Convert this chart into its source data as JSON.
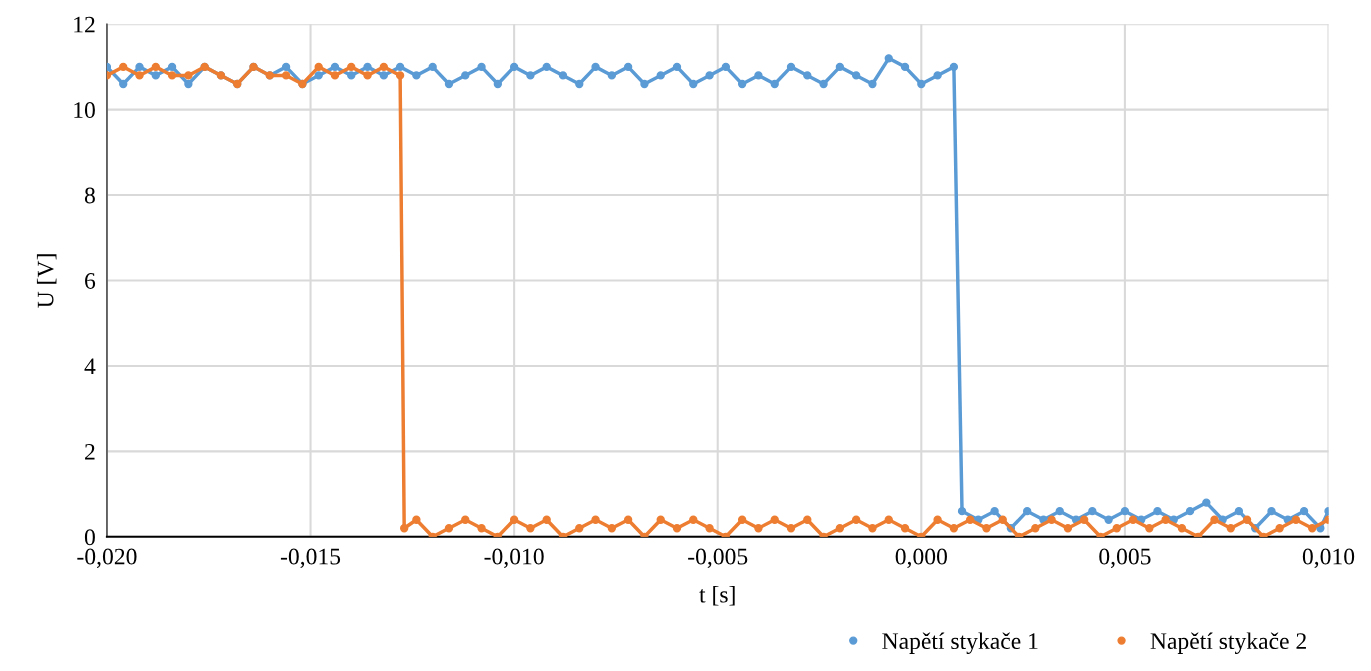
{
  "chart_data": {
    "type": "line",
    "xlabel": "t [s]",
    "ylabel": "U [V]",
    "xlim": [
      -0.02,
      0.01
    ],
    "xticks": [
      {
        "value": -0.02,
        "label": "-0,020"
      },
      {
        "value": -0.015,
        "label": "-0,015"
      },
      {
        "value": -0.01,
        "label": "-0,010"
      },
      {
        "value": -0.005,
        "label": "-0,005"
      },
      {
        "value": 0.0,
        "label": "0,000"
      },
      {
        "value": 0.005,
        "label": "0,005"
      },
      {
        "value": 0.01,
        "label": "0,010"
      }
    ],
    "ylim": [
      0,
      12
    ],
    "yticks": [
      0,
      2,
      4,
      6,
      8,
      10,
      12
    ],
    "grid": true,
    "legend": "bottom right",
    "marker": "circle",
    "line_style": "solid",
    "series": [
      {
        "name": "Napětí stykače 1",
        "color": "#5b9bd5",
        "x": [
          -0.02,
          -0.0196,
          -0.0192,
          -0.0188,
          -0.0184,
          -0.018,
          -0.0176,
          -0.0172,
          -0.0168,
          -0.0164,
          -0.016,
          -0.0156,
          -0.0152,
          -0.0148,
          -0.0144,
          -0.014,
          -0.0136,
          -0.0132,
          -0.0128,
          -0.0124,
          -0.012,
          -0.0116,
          -0.0112,
          -0.0108,
          -0.0104,
          -0.01,
          -0.0096,
          -0.0092,
          -0.0088,
          -0.0084,
          -0.008,
          -0.0076,
          -0.0072,
          -0.0068,
          -0.0064,
          -0.006,
          -0.0056,
          -0.0052,
          -0.0048,
          -0.0044,
          -0.004,
          -0.0036,
          -0.0032,
          -0.0028,
          -0.0024,
          -0.002,
          -0.0016,
          -0.0012,
          -0.0008,
          -0.0004,
          0.0,
          0.0004,
          0.0008,
          0.001,
          0.0014,
          0.0018,
          0.0022,
          0.0026,
          0.003,
          0.0034,
          0.0038,
          0.0042,
          0.0046,
          0.005,
          0.0054,
          0.0058,
          0.0062,
          0.0066,
          0.007,
          0.0074,
          0.0078,
          0.0082,
          0.0086,
          0.009,
          0.0094,
          0.0098,
          0.01
        ],
        "values": [
          11.0,
          10.6,
          11.0,
          10.8,
          11.0,
          10.6,
          11.0,
          10.8,
          10.6,
          11.0,
          10.8,
          11.0,
          10.6,
          10.8,
          11.0,
          10.8,
          11.0,
          10.8,
          11.0,
          10.8,
          11.0,
          10.6,
          10.8,
          11.0,
          10.6,
          11.0,
          10.8,
          11.0,
          10.8,
          10.6,
          11.0,
          10.8,
          11.0,
          10.6,
          10.8,
          11.0,
          10.6,
          10.8,
          11.0,
          10.6,
          10.8,
          10.6,
          11.0,
          10.8,
          10.6,
          11.0,
          10.8,
          10.6,
          11.2,
          11.0,
          10.6,
          10.8,
          11.0,
          0.6,
          0.4,
          0.6,
          0.2,
          0.6,
          0.4,
          0.6,
          0.4,
          0.6,
          0.4,
          0.6,
          0.4,
          0.6,
          0.4,
          0.6,
          0.8,
          0.4,
          0.6,
          0.2,
          0.6,
          0.4,
          0.6,
          0.2,
          0.6
        ]
      },
      {
        "name": "Napětí stykače 2",
        "color": "#ed7d31",
        "x": [
          -0.02,
          -0.0196,
          -0.0192,
          -0.0188,
          -0.0184,
          -0.018,
          -0.0176,
          -0.0172,
          -0.0168,
          -0.0164,
          -0.016,
          -0.0156,
          -0.0152,
          -0.0148,
          -0.0144,
          -0.014,
          -0.0136,
          -0.0132,
          -0.0128,
          -0.0127,
          -0.0124,
          -0.012,
          -0.0116,
          -0.0112,
          -0.0108,
          -0.0104,
          -0.01,
          -0.0096,
          -0.0092,
          -0.0088,
          -0.0084,
          -0.008,
          -0.0076,
          -0.0072,
          -0.0068,
          -0.0064,
          -0.006,
          -0.0056,
          -0.0052,
          -0.0048,
          -0.0044,
          -0.004,
          -0.0036,
          -0.0032,
          -0.0028,
          -0.0024,
          -0.002,
          -0.0016,
          -0.0012,
          -0.0008,
          -0.0004,
          0.0,
          0.0004,
          0.0008,
          0.0012,
          0.0016,
          0.002,
          0.0024,
          0.0028,
          0.0032,
          0.0036,
          0.004,
          0.0044,
          0.0048,
          0.0052,
          0.0056,
          0.006,
          0.0064,
          0.0068,
          0.0072,
          0.0076,
          0.008,
          0.0084,
          0.0088,
          0.0092,
          0.0096,
          0.01
        ],
        "values": [
          10.8,
          11.0,
          10.8,
          11.0,
          10.8,
          10.8,
          11.0,
          10.8,
          10.6,
          11.0,
          10.8,
          10.8,
          10.6,
          11.0,
          10.8,
          11.0,
          10.8,
          11.0,
          10.8,
          0.2,
          0.4,
          0.0,
          0.2,
          0.4,
          0.2,
          0.0,
          0.4,
          0.2,
          0.4,
          0.0,
          0.2,
          0.4,
          0.2,
          0.4,
          0.0,
          0.4,
          0.2,
          0.4,
          0.2,
          0.0,
          0.4,
          0.2,
          0.4,
          0.2,
          0.4,
          0.0,
          0.2,
          0.4,
          0.2,
          0.4,
          0.2,
          0.0,
          0.4,
          0.2,
          0.4,
          0.2,
          0.4,
          0.0,
          0.2,
          0.4,
          0.2,
          0.4,
          0.0,
          0.2,
          0.4,
          0.2,
          0.4,
          0.2,
          0.0,
          0.4,
          0.2,
          0.4,
          0.0,
          0.2,
          0.4,
          0.2,
          0.4
        ]
      }
    ]
  }
}
